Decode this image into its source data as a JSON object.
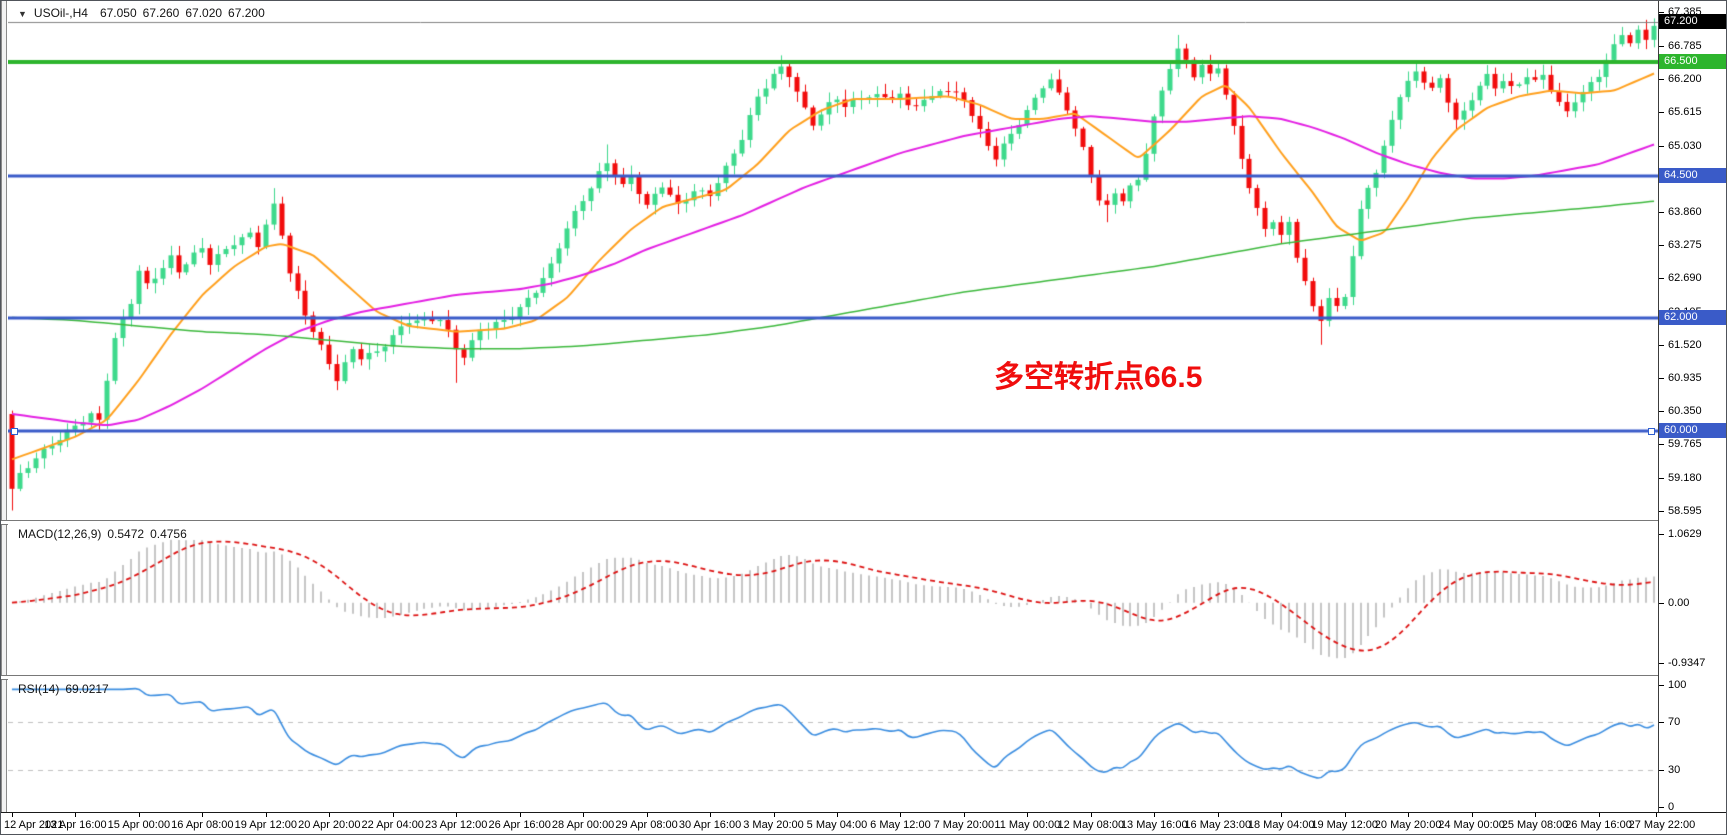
{
  "window": {
    "symbol_timeframe": "USOil-,H4",
    "quote": {
      "open": "67.050",
      "high": "67.260",
      "low": "67.020",
      "close": "67.200"
    }
  },
  "annotation": {
    "text": "多空转折点66.5",
    "color": "#f00d0d"
  },
  "main_chart": {
    "y_axis_labels": [
      "67.385",
      "66.785",
      "66.200",
      "65.615",
      "65.030",
      "64.445",
      "63.860",
      "63.275",
      "62.690",
      "62.105",
      "61.520",
      "60.935",
      "60.350",
      "59.765",
      "59.180",
      "58.595"
    ]
  },
  "chart_data": {
    "type": "candlestick",
    "symbol": "USOil-",
    "timeframe": "H4",
    "title": "USOil-,H4 67.050 67.260 67.020 67.200",
    "bars": 208,
    "x_label_stride": 8,
    "ylim": [
      58.45,
      67.56
    ],
    "colors": {
      "up": "#3ed98c",
      "down": "#f20c0c",
      "bid_line": "#808080"
    },
    "x_labels": [
      "12 Apr 2021",
      "13 Apr 16:00",
      "15 Apr 00:00",
      "16 Apr 08:00",
      "19 Apr 12:00",
      "20 Apr 20:00",
      "22 Apr 04:00",
      "23 Apr 12:00",
      "26 Apr 16:00",
      "28 Apr 00:00",
      "29 Apr 08:00",
      "30 Apr 16:00",
      "3 May 20:00",
      "5 May 04:00",
      "6 May 12:00",
      "7 May 20:00",
      "11 May 00:00",
      "12 May 08:00",
      "13 May 16:00",
      "16 May 23:00",
      "18 May 04:00",
      "19 May 12:00",
      "20 May 20:00",
      "24 May 00:00",
      "25 May 08:00",
      "26 May 16:00",
      "27 May 22:00"
    ],
    "close_keyframes": [
      [
        0,
        58.95
      ],
      [
        1,
        59.2
      ],
      [
        3,
        59.55
      ],
      [
        5,
        59.8
      ],
      [
        8,
        60.1
      ],
      [
        10,
        60.25
      ],
      [
        11,
        60.15
      ],
      [
        12,
        60.9
      ],
      [
        13,
        61.6
      ],
      [
        15,
        62.3
      ],
      [
        16,
        62.85
      ],
      [
        17,
        62.6
      ],
      [
        20,
        63.05
      ],
      [
        21,
        62.8
      ],
      [
        24,
        63.2
      ],
      [
        25,
        62.95
      ],
      [
        28,
        63.35
      ],
      [
        30,
        63.5
      ],
      [
        31,
        63.3
      ],
      [
        33,
        63.95
      ],
      [
        34,
        63.45
      ],
      [
        35,
        62.75
      ],
      [
        37,
        62.05
      ],
      [
        39,
        61.5
      ],
      [
        41,
        60.95
      ],
      [
        43,
        61.45
      ],
      [
        44,
        61.3
      ],
      [
        46,
        61.35
      ],
      [
        48,
        61.65
      ],
      [
        50,
        61.95
      ],
      [
        52,
        62.0
      ],
      [
        54,
        62.0
      ],
      [
        55,
        61.75
      ],
      [
        56,
        61.45
      ],
      [
        57,
        61.3
      ],
      [
        59,
        61.75
      ],
      [
        62,
        61.95
      ],
      [
        64,
        62.2
      ],
      [
        66,
        62.5
      ],
      [
        68,
        62.9
      ],
      [
        70,
        63.55
      ],
      [
        72,
        64.05
      ],
      [
        74,
        64.55
      ],
      [
        75,
        64.75
      ],
      [
        77,
        64.35
      ],
      [
        78,
        64.5
      ],
      [
        80,
        63.95
      ],
      [
        82,
        64.3
      ],
      [
        84,
        63.95
      ],
      [
        86,
        64.25
      ],
      [
        88,
        64.2
      ],
      [
        90,
        64.65
      ],
      [
        92,
        65.15
      ],
      [
        94,
        65.85
      ],
      [
        96,
        66.25
      ],
      [
        97,
        66.4
      ],
      [
        98,
        66.3
      ],
      [
        100,
        65.7
      ],
      [
        101,
        65.45
      ],
      [
        103,
        65.75
      ],
      [
        104,
        65.85
      ],
      [
        105,
        65.7
      ],
      [
        108,
        65.9
      ],
      [
        110,
        65.9
      ],
      [
        112,
        65.95
      ],
      [
        113,
        65.75
      ],
      [
        116,
        65.85
      ],
      [
        117,
        66.0
      ],
      [
        120,
        65.85
      ],
      [
        122,
        65.3
      ],
      [
        124,
        64.85
      ],
      [
        126,
        65.25
      ],
      [
        128,
        65.6
      ],
      [
        130,
        66.05
      ],
      [
        131,
        66.15
      ],
      [
        133,
        65.7
      ],
      [
        135,
        65.0
      ],
      [
        136,
        64.55
      ],
      [
        137,
        64.1
      ],
      [
        138,
        63.95
      ],
      [
        139,
        64.2
      ],
      [
        140,
        64.05
      ],
      [
        141,
        64.25
      ],
      [
        142,
        64.4
      ],
      [
        143,
        64.9
      ],
      [
        144,
        65.5
      ],
      [
        145,
        66.0
      ],
      [
        146,
        66.45
      ],
      [
        147,
        66.75
      ],
      [
        148,
        66.55
      ],
      [
        149,
        66.3
      ],
      [
        150,
        66.45
      ],
      [
        151,
        66.25
      ],
      [
        152,
        66.4
      ],
      [
        153,
        65.9
      ],
      [
        154,
        65.3
      ],
      [
        155,
        64.8
      ],
      [
        156,
        64.3
      ],
      [
        157,
        63.9
      ],
      [
        158,
        63.6
      ],
      [
        159,
        63.75
      ],
      [
        160,
        63.45
      ],
      [
        161,
        63.7
      ],
      [
        162,
        63.1
      ],
      [
        163,
        62.6
      ],
      [
        164,
        62.15
      ],
      [
        165,
        61.95
      ],
      [
        166,
        62.3
      ],
      [
        167,
        62.15
      ],
      [
        168,
        62.4
      ],
      [
        169,
        63.1
      ],
      [
        170,
        63.9
      ],
      [
        171,
        64.35
      ],
      [
        172,
        64.6
      ],
      [
        173,
        65.0
      ],
      [
        174,
        65.5
      ],
      [
        175,
        65.9
      ],
      [
        176,
        66.1
      ],
      [
        177,
        66.3
      ],
      [
        178,
        66.15
      ],
      [
        179,
        66.0
      ],
      [
        180,
        66.2
      ],
      [
        181,
        65.85
      ],
      [
        182,
        65.5
      ],
      [
        183,
        65.65
      ],
      [
        184,
        65.9
      ],
      [
        185,
        66.1
      ],
      [
        186,
        66.25
      ],
      [
        187,
        66.05
      ],
      [
        188,
        66.15
      ],
      [
        189,
        66.0
      ],
      [
        190,
        66.1
      ],
      [
        191,
        66.25
      ],
      [
        192,
        66.15
      ],
      [
        193,
        66.3
      ],
      [
        194,
        66.05
      ],
      [
        195,
        65.8
      ],
      [
        196,
        65.65
      ],
      [
        197,
        65.85
      ],
      [
        198,
        65.95
      ],
      [
        199,
        66.1
      ],
      [
        200,
        66.25
      ],
      [
        201,
        66.5
      ],
      [
        202,
        66.75
      ],
      [
        203,
        67.0
      ],
      [
        204,
        66.85
      ],
      [
        205,
        67.05
      ],
      [
        206,
        66.95
      ],
      [
        207,
        67.2
      ]
    ],
    "first_open": 60.3,
    "wick_overrides": {
      "0": [
        null,
        58.6
      ],
      "33": [
        64.28,
        null
      ],
      "41": [
        null,
        60.72
      ],
      "56": [
        null,
        60.85
      ],
      "75": [
        65.05,
        null
      ],
      "97": [
        66.62,
        null
      ],
      "131": [
        66.3,
        null
      ],
      "138": [
        null,
        63.68
      ],
      "147": [
        66.98,
        null
      ],
      "165": [
        null,
        61.52
      ]
    },
    "hlines": [
      {
        "price": 67.2,
        "color": "#808080",
        "width": 1,
        "tag_bg": "#000000",
        "label": "67.200",
        "style": "bid"
      },
      {
        "price": 66.5,
        "color": "#2db52d",
        "width": 4,
        "tag_bg": "#2db52d",
        "label": "66.500"
      },
      {
        "price": 64.5,
        "color": "#3a5bc8",
        "width": 3,
        "tag_bg": "#3a5bc8",
        "label": "64.500"
      },
      {
        "price": 62.0,
        "color": "#3a5bc8",
        "width": 3,
        "tag_bg": "#3a5bc8",
        "label": "62.000"
      },
      {
        "price": 60.0,
        "color": "#3a5bc8",
        "width": 3,
        "tag_bg": "#3a5bc8",
        "label": "60.000",
        "handles": true
      }
    ],
    "moving_averages": [
      {
        "name": "fast-ma",
        "color": "#ffa01e",
        "width": 2,
        "keyframes": [
          [
            0,
            59.5
          ],
          [
            4,
            59.7
          ],
          [
            8,
            59.9
          ],
          [
            12,
            60.2
          ],
          [
            16,
            60.9
          ],
          [
            20,
            61.7
          ],
          [
            24,
            62.4
          ],
          [
            28,
            62.9
          ],
          [
            32,
            63.25
          ],
          [
            34,
            63.3
          ],
          [
            38,
            63.1
          ],
          [
            42,
            62.6
          ],
          [
            46,
            62.1
          ],
          [
            50,
            61.85
          ],
          [
            56,
            61.75
          ],
          [
            62,
            61.8
          ],
          [
            66,
            61.95
          ],
          [
            70,
            62.35
          ],
          [
            74,
            63.0
          ],
          [
            78,
            63.55
          ],
          [
            82,
            63.95
          ],
          [
            86,
            64.1
          ],
          [
            90,
            64.25
          ],
          [
            94,
            64.7
          ],
          [
            98,
            65.3
          ],
          [
            102,
            65.65
          ],
          [
            106,
            65.85
          ],
          [
            112,
            65.85
          ],
          [
            118,
            65.9
          ],
          [
            122,
            65.75
          ],
          [
            126,
            65.5
          ],
          [
            130,
            65.5
          ],
          [
            134,
            65.6
          ],
          [
            138,
            65.2
          ],
          [
            142,
            64.8
          ],
          [
            146,
            65.3
          ],
          [
            150,
            65.9
          ],
          [
            153,
            66.1
          ],
          [
            156,
            65.7
          ],
          [
            160,
            64.9
          ],
          [
            164,
            64.2
          ],
          [
            167,
            63.6
          ],
          [
            170,
            63.35
          ],
          [
            173,
            63.5
          ],
          [
            176,
            64.1
          ],
          [
            179,
            64.8
          ],
          [
            182,
            65.3
          ],
          [
            186,
            65.7
          ],
          [
            190,
            65.9
          ],
          [
            194,
            66.0
          ],
          [
            198,
            65.95
          ],
          [
            202,
            66.0
          ],
          [
            207,
            66.3
          ]
        ]
      },
      {
        "name": "medium-ma",
        "color": "#e320e3",
        "width": 2,
        "keyframes": [
          [
            0,
            60.3
          ],
          [
            8,
            60.15
          ],
          [
            12,
            60.1
          ],
          [
            16,
            60.2
          ],
          [
            20,
            60.45
          ],
          [
            24,
            60.75
          ],
          [
            28,
            61.1
          ],
          [
            32,
            61.45
          ],
          [
            36,
            61.75
          ],
          [
            40,
            61.95
          ],
          [
            44,
            62.1
          ],
          [
            48,
            62.2
          ],
          [
            52,
            62.3
          ],
          [
            56,
            62.4
          ],
          [
            60,
            62.45
          ],
          [
            64,
            62.5
          ],
          [
            68,
            62.6
          ],
          [
            72,
            62.75
          ],
          [
            76,
            62.95
          ],
          [
            80,
            63.2
          ],
          [
            84,
            63.4
          ],
          [
            88,
            63.6
          ],
          [
            92,
            63.8
          ],
          [
            96,
            64.05
          ],
          [
            100,
            64.3
          ],
          [
            104,
            64.5
          ],
          [
            108,
            64.7
          ],
          [
            112,
            64.9
          ],
          [
            116,
            65.05
          ],
          [
            120,
            65.2
          ],
          [
            124,
            65.3
          ],
          [
            128,
            65.4
          ],
          [
            132,
            65.5
          ],
          [
            136,
            65.55
          ],
          [
            140,
            65.5
          ],
          [
            144,
            65.45
          ],
          [
            148,
            65.45
          ],
          [
            152,
            65.5
          ],
          [
            156,
            65.55
          ],
          [
            160,
            65.5
          ],
          [
            164,
            65.35
          ],
          [
            168,
            65.15
          ],
          [
            172,
            64.9
          ],
          [
            176,
            64.7
          ],
          [
            180,
            64.55
          ],
          [
            184,
            64.45
          ],
          [
            188,
            64.45
          ],
          [
            192,
            64.5
          ],
          [
            196,
            64.6
          ],
          [
            200,
            64.7
          ],
          [
            204,
            64.9
          ],
          [
            207,
            65.05
          ]
        ]
      },
      {
        "name": "slow-ma",
        "color": "#3cb83c",
        "width": 1.5,
        "keyframes": [
          [
            0,
            62.0
          ],
          [
            8,
            61.95
          ],
          [
            16,
            61.85
          ],
          [
            24,
            61.75
          ],
          [
            32,
            61.7
          ],
          [
            40,
            61.6
          ],
          [
            48,
            61.5
          ],
          [
            56,
            61.45
          ],
          [
            64,
            61.45
          ],
          [
            72,
            61.5
          ],
          [
            80,
            61.6
          ],
          [
            88,
            61.7
          ],
          [
            96,
            61.85
          ],
          [
            104,
            62.05
          ],
          [
            112,
            62.25
          ],
          [
            120,
            62.45
          ],
          [
            128,
            62.6
          ],
          [
            136,
            62.75
          ],
          [
            144,
            62.9
          ],
          [
            152,
            63.1
          ],
          [
            160,
            63.3
          ],
          [
            168,
            63.45
          ],
          [
            176,
            63.6
          ],
          [
            184,
            63.75
          ],
          [
            192,
            63.85
          ],
          [
            200,
            63.95
          ],
          [
            207,
            64.05
          ]
        ]
      }
    ],
    "macd": {
      "label": "MACD(12,26,9)",
      "main_value": "0.5472",
      "signal_value": "0.4756",
      "fast": 12,
      "slow": 26,
      "signal": 9,
      "ylim": [
        -1.12,
        1.22
      ],
      "axis_labels": [
        "1.0629",
        "0.00",
        "-0.9347"
      ],
      "axis_values": [
        1.0629,
        0.0,
        -0.9347
      ],
      "histogram_color": "#c6c6c6",
      "signal_color": "#dd1414"
    },
    "rsi": {
      "label": "RSI(14)",
      "value": "69.0217",
      "period": 14,
      "ylim": [
        0,
        100
      ],
      "levels": [
        70,
        30
      ],
      "axis_labels": [
        "100",
        "70",
        "30",
        "0"
      ],
      "axis_values": [
        100,
        70,
        30,
        0
      ],
      "line_color": "#3c8ee0",
      "level_color": "#bfbfbf"
    }
  }
}
